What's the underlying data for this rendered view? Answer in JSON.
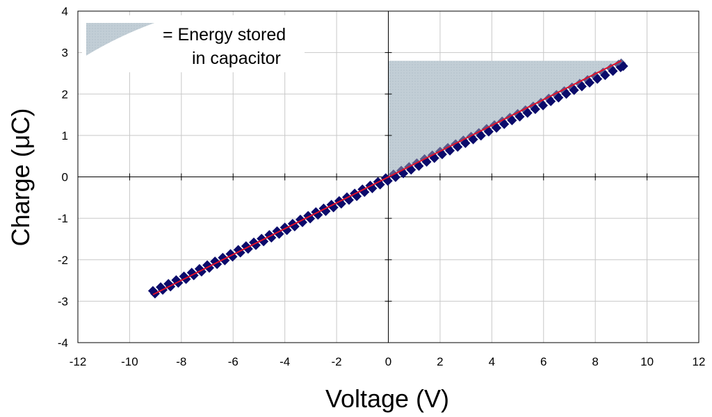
{
  "chart_data": {
    "type": "scatter",
    "title": "",
    "xlabel": "Voltage (V)",
    "ylabel": "Charge (μC)",
    "xlim": [
      -12,
      12
    ],
    "ylim": [
      -4,
      4
    ],
    "xticks": [
      -12,
      -10,
      -8,
      -6,
      -4,
      -2,
      0,
      2,
      4,
      6,
      8,
      10,
      12
    ],
    "yticks": [
      -4,
      -3,
      -2,
      -1,
      0,
      1,
      2,
      3,
      4
    ],
    "grid": true,
    "legend_position": "top-left",
    "legend_text_line1": "= Energy stored",
    "legend_text_line2": "in capacitor",
    "series": [
      {
        "kind": "measured",
        "color": "#0b0b6b",
        "marker": "diamond",
        "x": [
          -9.1,
          -8.8,
          -8.5,
          -8.2,
          -7.9,
          -7.6,
          -7.3,
          -7.0,
          -6.7,
          -6.4,
          -6.1,
          -5.8,
          -5.5,
          -5.2,
          -4.9,
          -4.6,
          -4.3,
          -4.0,
          -3.7,
          -3.4,
          -3.1,
          -2.8,
          -2.5,
          -2.2,
          -1.9,
          -1.6,
          -1.3,
          -1.0,
          -0.7,
          -0.4,
          -0.1,
          0.2,
          0.5,
          0.8,
          1.1,
          1.4,
          1.7,
          2.0,
          2.3,
          2.6,
          2.9,
          3.2,
          3.5,
          3.8,
          4.1,
          4.4,
          4.7,
          5.0,
          5.3,
          5.6,
          5.9,
          6.2,
          6.5,
          6.8,
          7.1,
          7.4,
          7.7,
          8.0,
          8.3,
          8.6,
          8.9,
          9.0
        ],
        "y": [
          -2.75,
          -2.66,
          -2.58,
          -2.49,
          -2.4,
          -2.31,
          -2.22,
          -2.13,
          -2.04,
          -1.95,
          -1.86,
          -1.76,
          -1.67,
          -1.58,
          -1.49,
          -1.4,
          -1.31,
          -1.22,
          -1.13,
          -1.03,
          -0.94,
          -0.85,
          -0.76,
          -0.67,
          -0.58,
          -0.49,
          -0.4,
          -0.3,
          -0.21,
          -0.12,
          -0.03,
          0.06,
          0.15,
          0.24,
          0.33,
          0.43,
          0.52,
          0.61,
          0.7,
          0.79,
          0.88,
          0.97,
          1.06,
          1.16,
          1.25,
          1.34,
          1.43,
          1.52,
          1.61,
          1.7,
          1.79,
          1.89,
          1.98,
          2.07,
          2.16,
          2.25,
          2.34,
          2.43,
          2.52,
          2.62,
          2.71,
          2.74
        ]
      }
    ],
    "fit_line": {
      "color": "#e0102a",
      "x": [
        -9.1,
        9.0
      ],
      "y": [
        -2.84,
        2.8
      ]
    },
    "shaded_region": {
      "color": "#c2ced6",
      "x": [
        0,
        9.0
      ],
      "y_top": 2.8,
      "description_points": [
        [
          0,
          0
        ],
        [
          0,
          2.8
        ],
        [
          9.0,
          2.8
        ]
      ]
    }
  }
}
